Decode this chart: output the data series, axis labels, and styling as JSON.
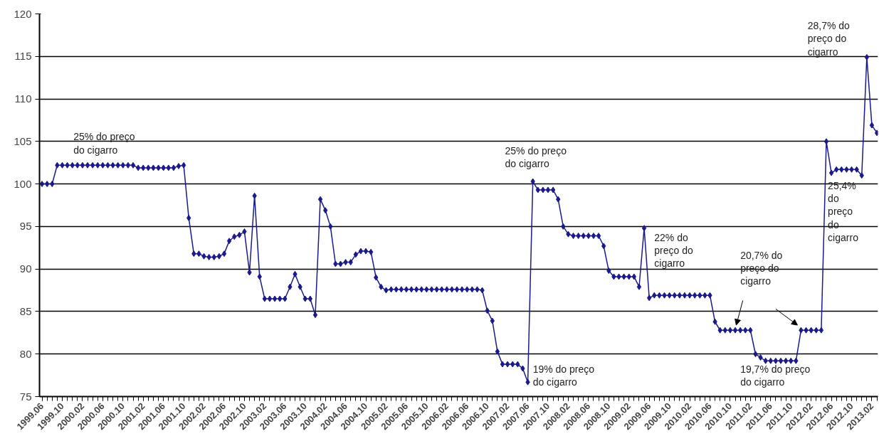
{
  "chart_data": {
    "type": "line",
    "categories": [
      "1999.06",
      null,
      null,
      null,
      "1999.10",
      null,
      null,
      null,
      "2000.02",
      null,
      null,
      null,
      "2000.06",
      null,
      null,
      null,
      "2000.10",
      null,
      null,
      null,
      "2001.02",
      null,
      null,
      null,
      "2001.06",
      null,
      null,
      null,
      "2001.10",
      null,
      null,
      null,
      "2002.02",
      null,
      null,
      null,
      "2002.06",
      null,
      null,
      null,
      "2002.10",
      null,
      null,
      null,
      "2003.02",
      null,
      null,
      null,
      "2003.06",
      null,
      null,
      null,
      "2003.10",
      null,
      null,
      null,
      "2004.02",
      null,
      null,
      null,
      "2004.06",
      null,
      null,
      null,
      "2004.10",
      null,
      null,
      null,
      "2005.02",
      null,
      null,
      null,
      "2005.06",
      null,
      null,
      null,
      "2005.10",
      null,
      null,
      null,
      "2006.02",
      null,
      null,
      null,
      "2006.06",
      null,
      null,
      null,
      "2006.10",
      null,
      null,
      null,
      "2007.02",
      null,
      null,
      null,
      "2007.06",
      null,
      null,
      null,
      "2007.10",
      null,
      null,
      null,
      "2008.02",
      null,
      null,
      null,
      "2008.06",
      null,
      null,
      null,
      "2008.10",
      null,
      null,
      null,
      "2009.02",
      null,
      null,
      null,
      "2009.06",
      null,
      null,
      null,
      "2009.10",
      null,
      null,
      null,
      "2010.02",
      null,
      null,
      null,
      "2010.06",
      null,
      null,
      null,
      "2010.10",
      null,
      null,
      null,
      "2011.02",
      null,
      null,
      null,
      "2011.06",
      null,
      null,
      null,
      "2011.10",
      null,
      null,
      null,
      "2012.02",
      null,
      null,
      null,
      "2012.06",
      null,
      null,
      null,
      "2012.10",
      null,
      null,
      null,
      "2013.02",
      null
    ],
    "series": [
      {
        "color": "#1a1a8c",
        "values": [
          100,
          100,
          100,
          102.2,
          102.2,
          102.2,
          102.2,
          102.2,
          102.2,
          102.2,
          102.2,
          102.2,
          102.2,
          102.2,
          102.2,
          102.2,
          102.2,
          102.2,
          102.2,
          101.9,
          101.9,
          101.9,
          101.9,
          101.9,
          101.9,
          101.9,
          101.9,
          102.1,
          102.2,
          96,
          91.8,
          91.8,
          91.5,
          91.4,
          91.4,
          91.5,
          91.8,
          93.3,
          93.8,
          94.0,
          94.4,
          89.6,
          98.6,
          89.1,
          86.5,
          86.5,
          86.5,
          86.5,
          86.5,
          87.9,
          89.4,
          87.9,
          86.5,
          86.5,
          84.6,
          98.2,
          96.9,
          95.0,
          90.6,
          90.6,
          90.8,
          90.8,
          91.7,
          92.1,
          92.1,
          92.0,
          89.0,
          87.9,
          87.5,
          87.6,
          87.6,
          87.6,
          87.6,
          87.6,
          87.6,
          87.6,
          87.6,
          87.6,
          87.6,
          87.6,
          87.6,
          87.6,
          87.6,
          87.6,
          87.6,
          87.6,
          87.6,
          87.5,
          85.1,
          83.9,
          80.3,
          78.8,
          78.8,
          78.8,
          78.8,
          78.3,
          76.7,
          100.3,
          99.3,
          99.3,
          99.3,
          99.3,
          98.2,
          95.0,
          94.1,
          93.9,
          93.9,
          93.9,
          93.9,
          93.9,
          93.9,
          92.7,
          89.8,
          89.1,
          89.1,
          89.1,
          89.1,
          89.1,
          87.9,
          94.8,
          86.6,
          86.9,
          86.9,
          86.9,
          86.9,
          86.9,
          86.9,
          86.9,
          86.9,
          86.9,
          86.9,
          86.9,
          86.9,
          83.8,
          82.8,
          82.8,
          82.8,
          82.8,
          82.8,
          82.8,
          82.8,
          80.0,
          79.6,
          79.2,
          79.2,
          79.2,
          79.2,
          79.2,
          79.2,
          79.2,
          82.8,
          82.8,
          82.8,
          82.8,
          82.8,
          105.0,
          101.3,
          101.7,
          101.7,
          101.7,
          101.7,
          101.7,
          101.0,
          114.9,
          106.9,
          106.0
        ]
      }
    ],
    "ylim": [
      75,
      120
    ],
    "yticks": [
      75,
      80,
      85,
      90,
      95,
      100,
      105,
      110,
      115,
      120
    ],
    "grid": "y",
    "marker": "diamond",
    "line_style": "solid",
    "annotations": [
      "25% do preço\ndo cigarro",
      "25% do preço\ndo cigarro",
      "19% do preço\ndo cigarro",
      "22% do\npreço do\ncigarro",
      "20,7% do\npreço do\ncigarro",
      "19,7% do preço\ndo cigarro",
      "28,7% do\npreço do\ncigarro",
      "25,4%\ndo\npreço\ndo\ncigarro"
    ]
  }
}
